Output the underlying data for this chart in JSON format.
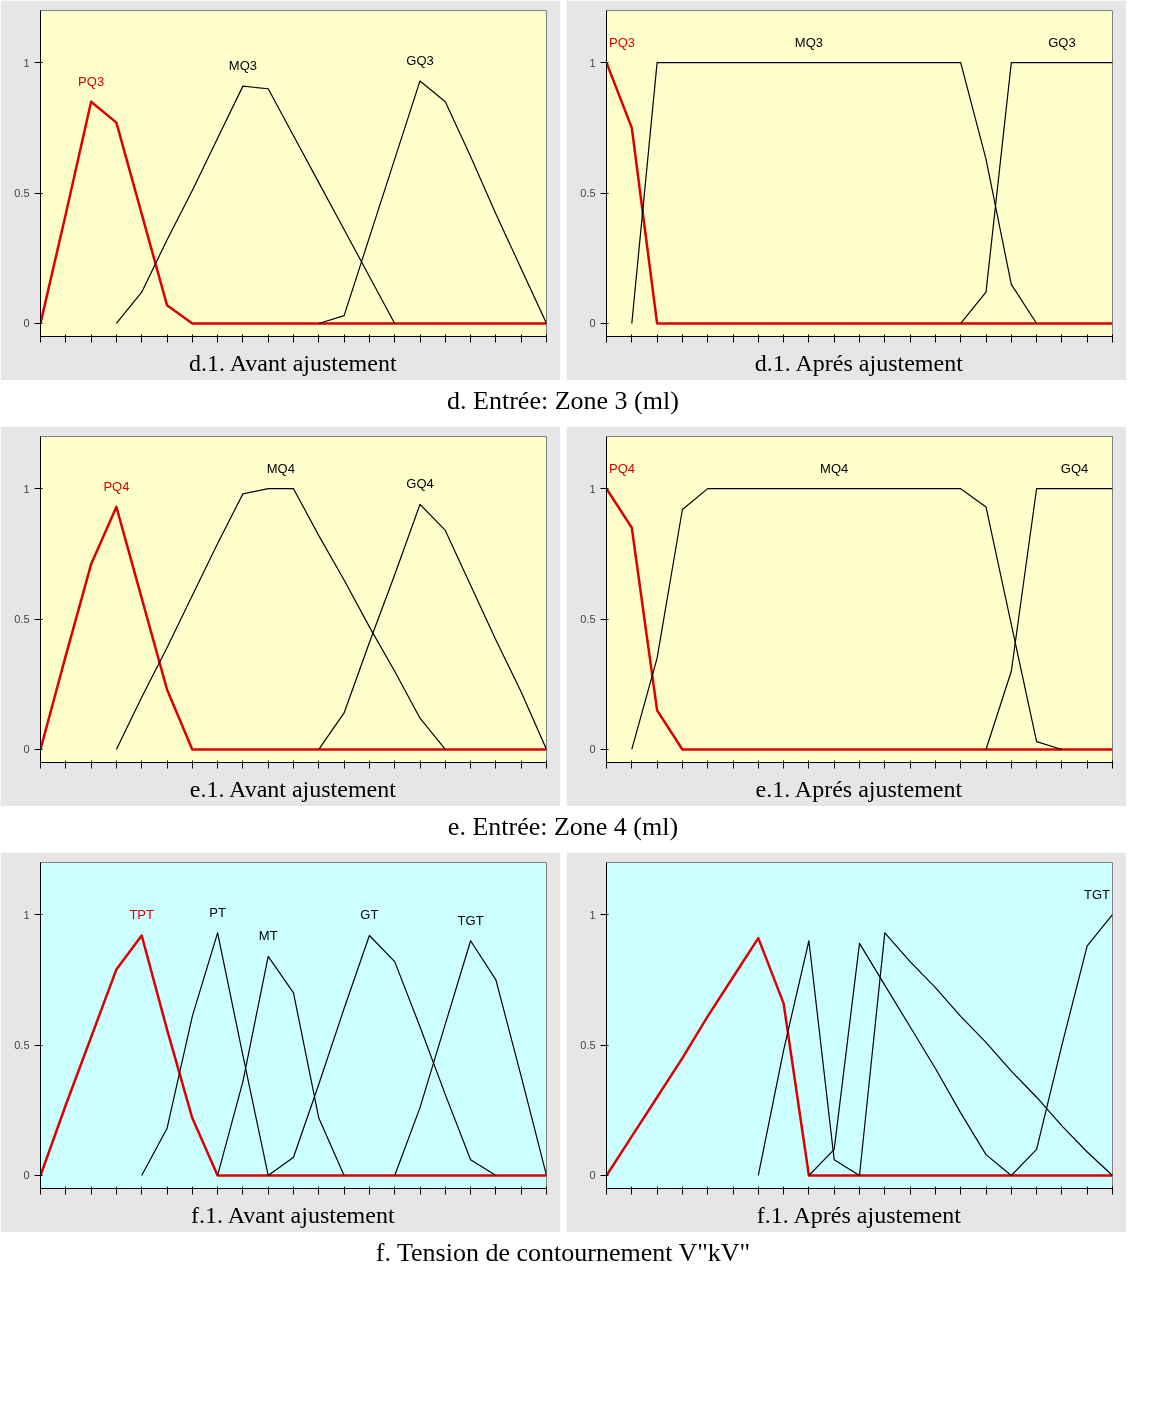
{
  "chart_data": [
    {
      "type": "line",
      "title": "d.1. Avant ajustement",
      "annotations": [
        "d. Entrée: Zone 3 (ml)"
      ],
      "categories": [
        null,
        null,
        null,
        null,
        null,
        null,
        null,
        null,
        null,
        null,
        null,
        null,
        null,
        null,
        null,
        null,
        null,
        null,
        null,
        null,
        null
      ],
      "ylim": [
        -0.05,
        1.2
      ],
      "yticks": [
        0,
        0.5,
        1
      ],
      "tick_labels": "y",
      "grid": false,
      "legend": false,
      "series": [
        {
          "name": "PQ3",
          "color": "#dd0000",
          "values": [
            0,
            0.42,
            0.85,
            0.77,
            0.42,
            0.07,
            0,
            0,
            0,
            0,
            0,
            0,
            0,
            0,
            0,
            0,
            0,
            0,
            0,
            0,
            0
          ]
        },
        {
          "name": "MQ3",
          "color": "#000000",
          "values": [
            null,
            null,
            null,
            0,
            0.12,
            0.32,
            0.51,
            0.71,
            0.91,
            0.9,
            0.72,
            0.54,
            0.36,
            0.18,
            0,
            null,
            null,
            null,
            null,
            null,
            null
          ]
        },
        {
          "name": "GQ3",
          "color": "#000000",
          "values": [
            null,
            null,
            null,
            null,
            null,
            null,
            null,
            null,
            null,
            null,
            null,
            0,
            0.03,
            0.33,
            0.63,
            0.93,
            0.85,
            0.64,
            0.42,
            0.21,
            0
          ]
        }
      ]
    },
    {
      "type": "line",
      "title": "d.1. Aprés ajustement",
      "categories": [
        null,
        null,
        null,
        null,
        null,
        null,
        null,
        null,
        null,
        null,
        null,
        null,
        null,
        null,
        null,
        null,
        null,
        null,
        null,
        null,
        null
      ],
      "ylim": [
        -0.05,
        1.2
      ],
      "yticks": [
        0,
        0.5,
        1
      ],
      "tick_labels": "y",
      "grid": false,
      "legend": false,
      "series": [
        {
          "name": "PQ3",
          "color": "#dd0000",
          "values": [
            1,
            0.75,
            0,
            0,
            0,
            0,
            0,
            0,
            0,
            0,
            0,
            0,
            0,
            0,
            0,
            0,
            0,
            0,
            0,
            0,
            0
          ]
        },
        {
          "name": "MQ3",
          "color": "#000000",
          "values": [
            null,
            0,
            1,
            1,
            1,
            1,
            1,
            1,
            1,
            1,
            1,
            1,
            1,
            1,
            1,
            0.63,
            0.15,
            0,
            null,
            null,
            null
          ]
        },
        {
          "name": "GQ3",
          "color": "#000000",
          "values": [
            null,
            null,
            null,
            null,
            null,
            null,
            null,
            null,
            null,
            null,
            null,
            null,
            null,
            null,
            0,
            0.12,
            1,
            1,
            1,
            1,
            1
          ]
        }
      ]
    },
    {
      "type": "line",
      "title": "e.1. Avant ajustement",
      "annotations": [
        "e. Entrée: Zone 4 (ml)"
      ],
      "categories": [
        null,
        null,
        null,
        null,
        null,
        null,
        null,
        null,
        null,
        null,
        null,
        null,
        null,
        null,
        null,
        null,
        null,
        null,
        null,
        null,
        null
      ],
      "ylim": [
        -0.05,
        1.2
      ],
      "yticks": [
        0,
        0.5,
        1
      ],
      "tick_labels": "y",
      "grid": false,
      "legend": false,
      "series": [
        {
          "name": "PQ4",
          "color": "#dd0000",
          "values": [
            0,
            0.36,
            0.71,
            0.93,
            0.58,
            0.23,
            0,
            0,
            0,
            0,
            0,
            0,
            0,
            0,
            0,
            0,
            0,
            0,
            0,
            0,
            0
          ]
        },
        {
          "name": "MQ4",
          "color": "#000000",
          "values": [
            null,
            null,
            null,
            0,
            0.2,
            0.39,
            0.59,
            0.79,
            0.98,
            1,
            1,
            0.82,
            0.65,
            0.47,
            0.3,
            0.12,
            0,
            null,
            null,
            null,
            null
          ]
        },
        {
          "name": "GQ4",
          "color": "#000000",
          "values": [
            null,
            null,
            null,
            null,
            null,
            null,
            null,
            null,
            null,
            null,
            null,
            0,
            0.14,
            0.41,
            0.67,
            0.94,
            0.84,
            0.63,
            0.42,
            0.22,
            0
          ]
        }
      ]
    },
    {
      "type": "line",
      "title": "e.1. Aprés ajustement",
      "categories": [
        null,
        null,
        null,
        null,
        null,
        null,
        null,
        null,
        null,
        null,
        null,
        null,
        null,
        null,
        null,
        null,
        null,
        null,
        null,
        null,
        null
      ],
      "ylim": [
        -0.05,
        1.2
      ],
      "yticks": [
        0,
        0.5,
        1
      ],
      "tick_labels": "y",
      "grid": false,
      "legend": false,
      "series": [
        {
          "name": "PQ4",
          "color": "#dd0000",
          "values": [
            1,
            0.85,
            0.15,
            0,
            0,
            0,
            0,
            0,
            0,
            0,
            0,
            0,
            0,
            0,
            0,
            0,
            0,
            0,
            0,
            0,
            0
          ]
        },
        {
          "name": "MQ4",
          "color": "#000000",
          "values": [
            null,
            0,
            0.35,
            0.92,
            1,
            1,
            1,
            1,
            1,
            1,
            1,
            1,
            1,
            1,
            1,
            0.93,
            0.48,
            0.03,
            0,
            null,
            null
          ]
        },
        {
          "name": "GQ4",
          "color": "#000000",
          "values": [
            null,
            null,
            null,
            null,
            null,
            null,
            null,
            null,
            null,
            null,
            null,
            null,
            null,
            null,
            null,
            0,
            0.3,
            1,
            1,
            1,
            1
          ]
        }
      ]
    },
    {
      "type": "line",
      "title": "f.1. Avant ajustement",
      "annotations": [
        "f. Tension de contournement V\"kV\""
      ],
      "categories": [
        null,
        null,
        null,
        null,
        null,
        null,
        null,
        null,
        null,
        null,
        null,
        null,
        null,
        null,
        null,
        null,
        null,
        null,
        null,
        null,
        null
      ],
      "ylim": [
        -0.05,
        1.2
      ],
      "yticks": [
        0,
        0.5,
        1
      ],
      "tick_labels": "y",
      "grid": false,
      "legend": false,
      "series": [
        {
          "name": "TPT",
          "color": "#dd0000",
          "values": [
            0,
            0.27,
            0.53,
            0.79,
            0.92,
            0.56,
            0.22,
            0,
            0,
            0,
            0,
            0,
            0,
            0,
            0,
            0,
            0,
            0,
            0,
            0,
            0
          ]
        },
        {
          "name": "PT",
          "color": "#000000",
          "values": [
            null,
            null,
            null,
            null,
            0,
            0.18,
            0.61,
            0.93,
            0.46,
            0,
            null,
            null,
            null,
            null,
            null,
            null,
            null,
            null,
            null,
            null,
            null
          ]
        },
        {
          "name": "MT",
          "color": "#000000",
          "values": [
            null,
            null,
            null,
            null,
            null,
            null,
            null,
            0,
            0.36,
            0.84,
            0.7,
            0.22,
            0,
            null,
            null,
            null,
            null,
            null,
            null,
            null,
            null
          ]
        },
        {
          "name": "GT",
          "color": "#000000",
          "values": [
            null,
            null,
            null,
            null,
            null,
            null,
            null,
            null,
            null,
            0,
            0.07,
            0.35,
            0.64,
            0.92,
            0.82,
            0.57,
            0.31,
            0.06,
            0,
            null,
            null
          ]
        },
        {
          "name": "TGT",
          "color": "#000000",
          "values": [
            null,
            null,
            null,
            null,
            null,
            null,
            null,
            null,
            null,
            null,
            null,
            null,
            null,
            null,
            0,
            0.26,
            0.58,
            0.9,
            0.75,
            0.38,
            0
          ]
        }
      ]
    },
    {
      "type": "line",
      "title": "f.1. Aprés ajustement",
      "categories": [
        null,
        null,
        null,
        null,
        null,
        null,
        null,
        null,
        null,
        null,
        null,
        null,
        null,
        null,
        null,
        null,
        null,
        null,
        null,
        null,
        null
      ],
      "ylim": [
        -0.05,
        1.2
      ],
      "yticks": [
        0,
        0.5,
        1
      ],
      "tick_labels": "y",
      "grid": false,
      "legend": false,
      "series": [
        {
          "color": "#dd0000",
          "values": [
            0,
            0.15,
            0.3,
            0.45,
            0.61,
            0.76,
            0.91,
            0.66,
            0,
            0,
            0,
            0,
            0,
            0,
            0,
            0,
            0,
            0,
            0,
            0,
            0
          ]
        },
        {
          "color": "#000000",
          "values": [
            null,
            null,
            null,
            null,
            null,
            null,
            0,
            0.48,
            0.9,
            0.06,
            0,
            null,
            null,
            null,
            null,
            null,
            null,
            null,
            null,
            null,
            null
          ]
        },
        {
          "color": "#000000",
          "values": [
            null,
            null,
            null,
            null,
            null,
            null,
            null,
            null,
            0,
            0.1,
            0.89,
            0.73,
            0.57,
            0.41,
            0.24,
            0.08,
            0,
            null,
            null,
            null,
            null
          ]
        },
        {
          "color": "#000000",
          "values": [
            null,
            null,
            null,
            null,
            null,
            null,
            null,
            null,
            null,
            null,
            0,
            0.93,
            0.82,
            0.72,
            0.61,
            0.51,
            0.4,
            0.3,
            0.19,
            0.09,
            0
          ]
        },
        {
          "name": "TGT",
          "color": "#000000",
          "values": [
            null,
            null,
            null,
            null,
            null,
            null,
            null,
            null,
            null,
            null,
            null,
            null,
            null,
            null,
            null,
            null,
            0,
            0.1,
            0.5,
            0.88,
            1
          ]
        }
      ]
    }
  ]
}
